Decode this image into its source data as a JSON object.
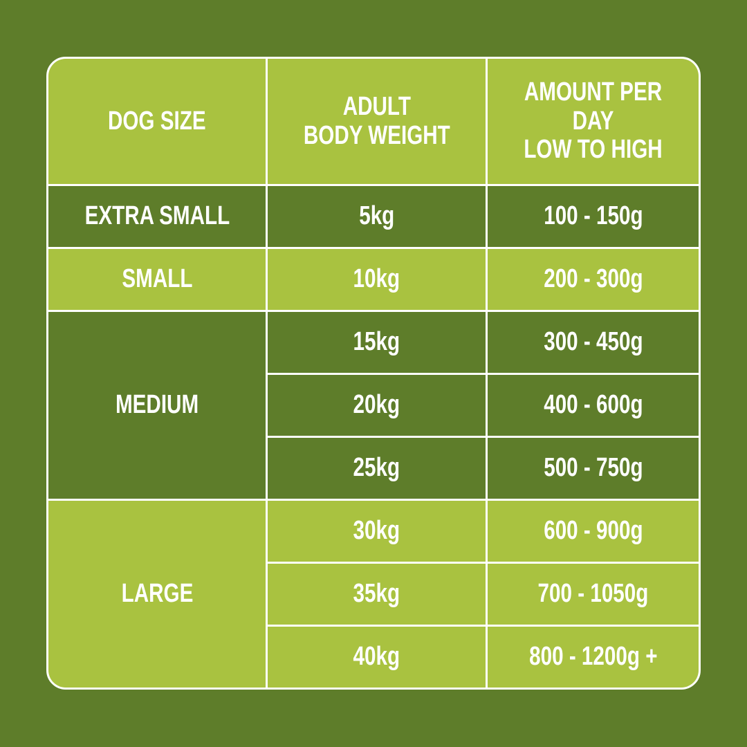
{
  "colors": {
    "background": "#5e7d2a",
    "light_green": "#a9c240",
    "dark_green": "#5e7d2a",
    "text": "#ffffff"
  },
  "headers": [
    "DOG SIZE",
    "ADULT\nBODY WEIGHT",
    "AMOUNT PER DAY\nLOW TO HIGH"
  ],
  "groups": [
    {
      "size": "EXTRA SMALL",
      "rows": [
        {
          "weight": "5kg",
          "amount": "100 - 150g"
        }
      ]
    },
    {
      "size": "SMALL",
      "rows": [
        {
          "weight": "10kg",
          "amount": "200 - 300g"
        }
      ]
    },
    {
      "size": "MEDIUM",
      "rows": [
        {
          "weight": "15kg",
          "amount": "300 - 450g"
        },
        {
          "weight": "20kg",
          "amount": "400 - 600g"
        },
        {
          "weight": "25kg",
          "amount": "500 - 750g"
        }
      ]
    },
    {
      "size": "LARGE",
      "rows": [
        {
          "weight": "30kg",
          "amount": "600 - 900g"
        },
        {
          "weight": "35kg",
          "amount": "700 - 1050g"
        },
        {
          "weight": "40kg",
          "amount": "800 - 1200g +"
        }
      ]
    }
  ]
}
